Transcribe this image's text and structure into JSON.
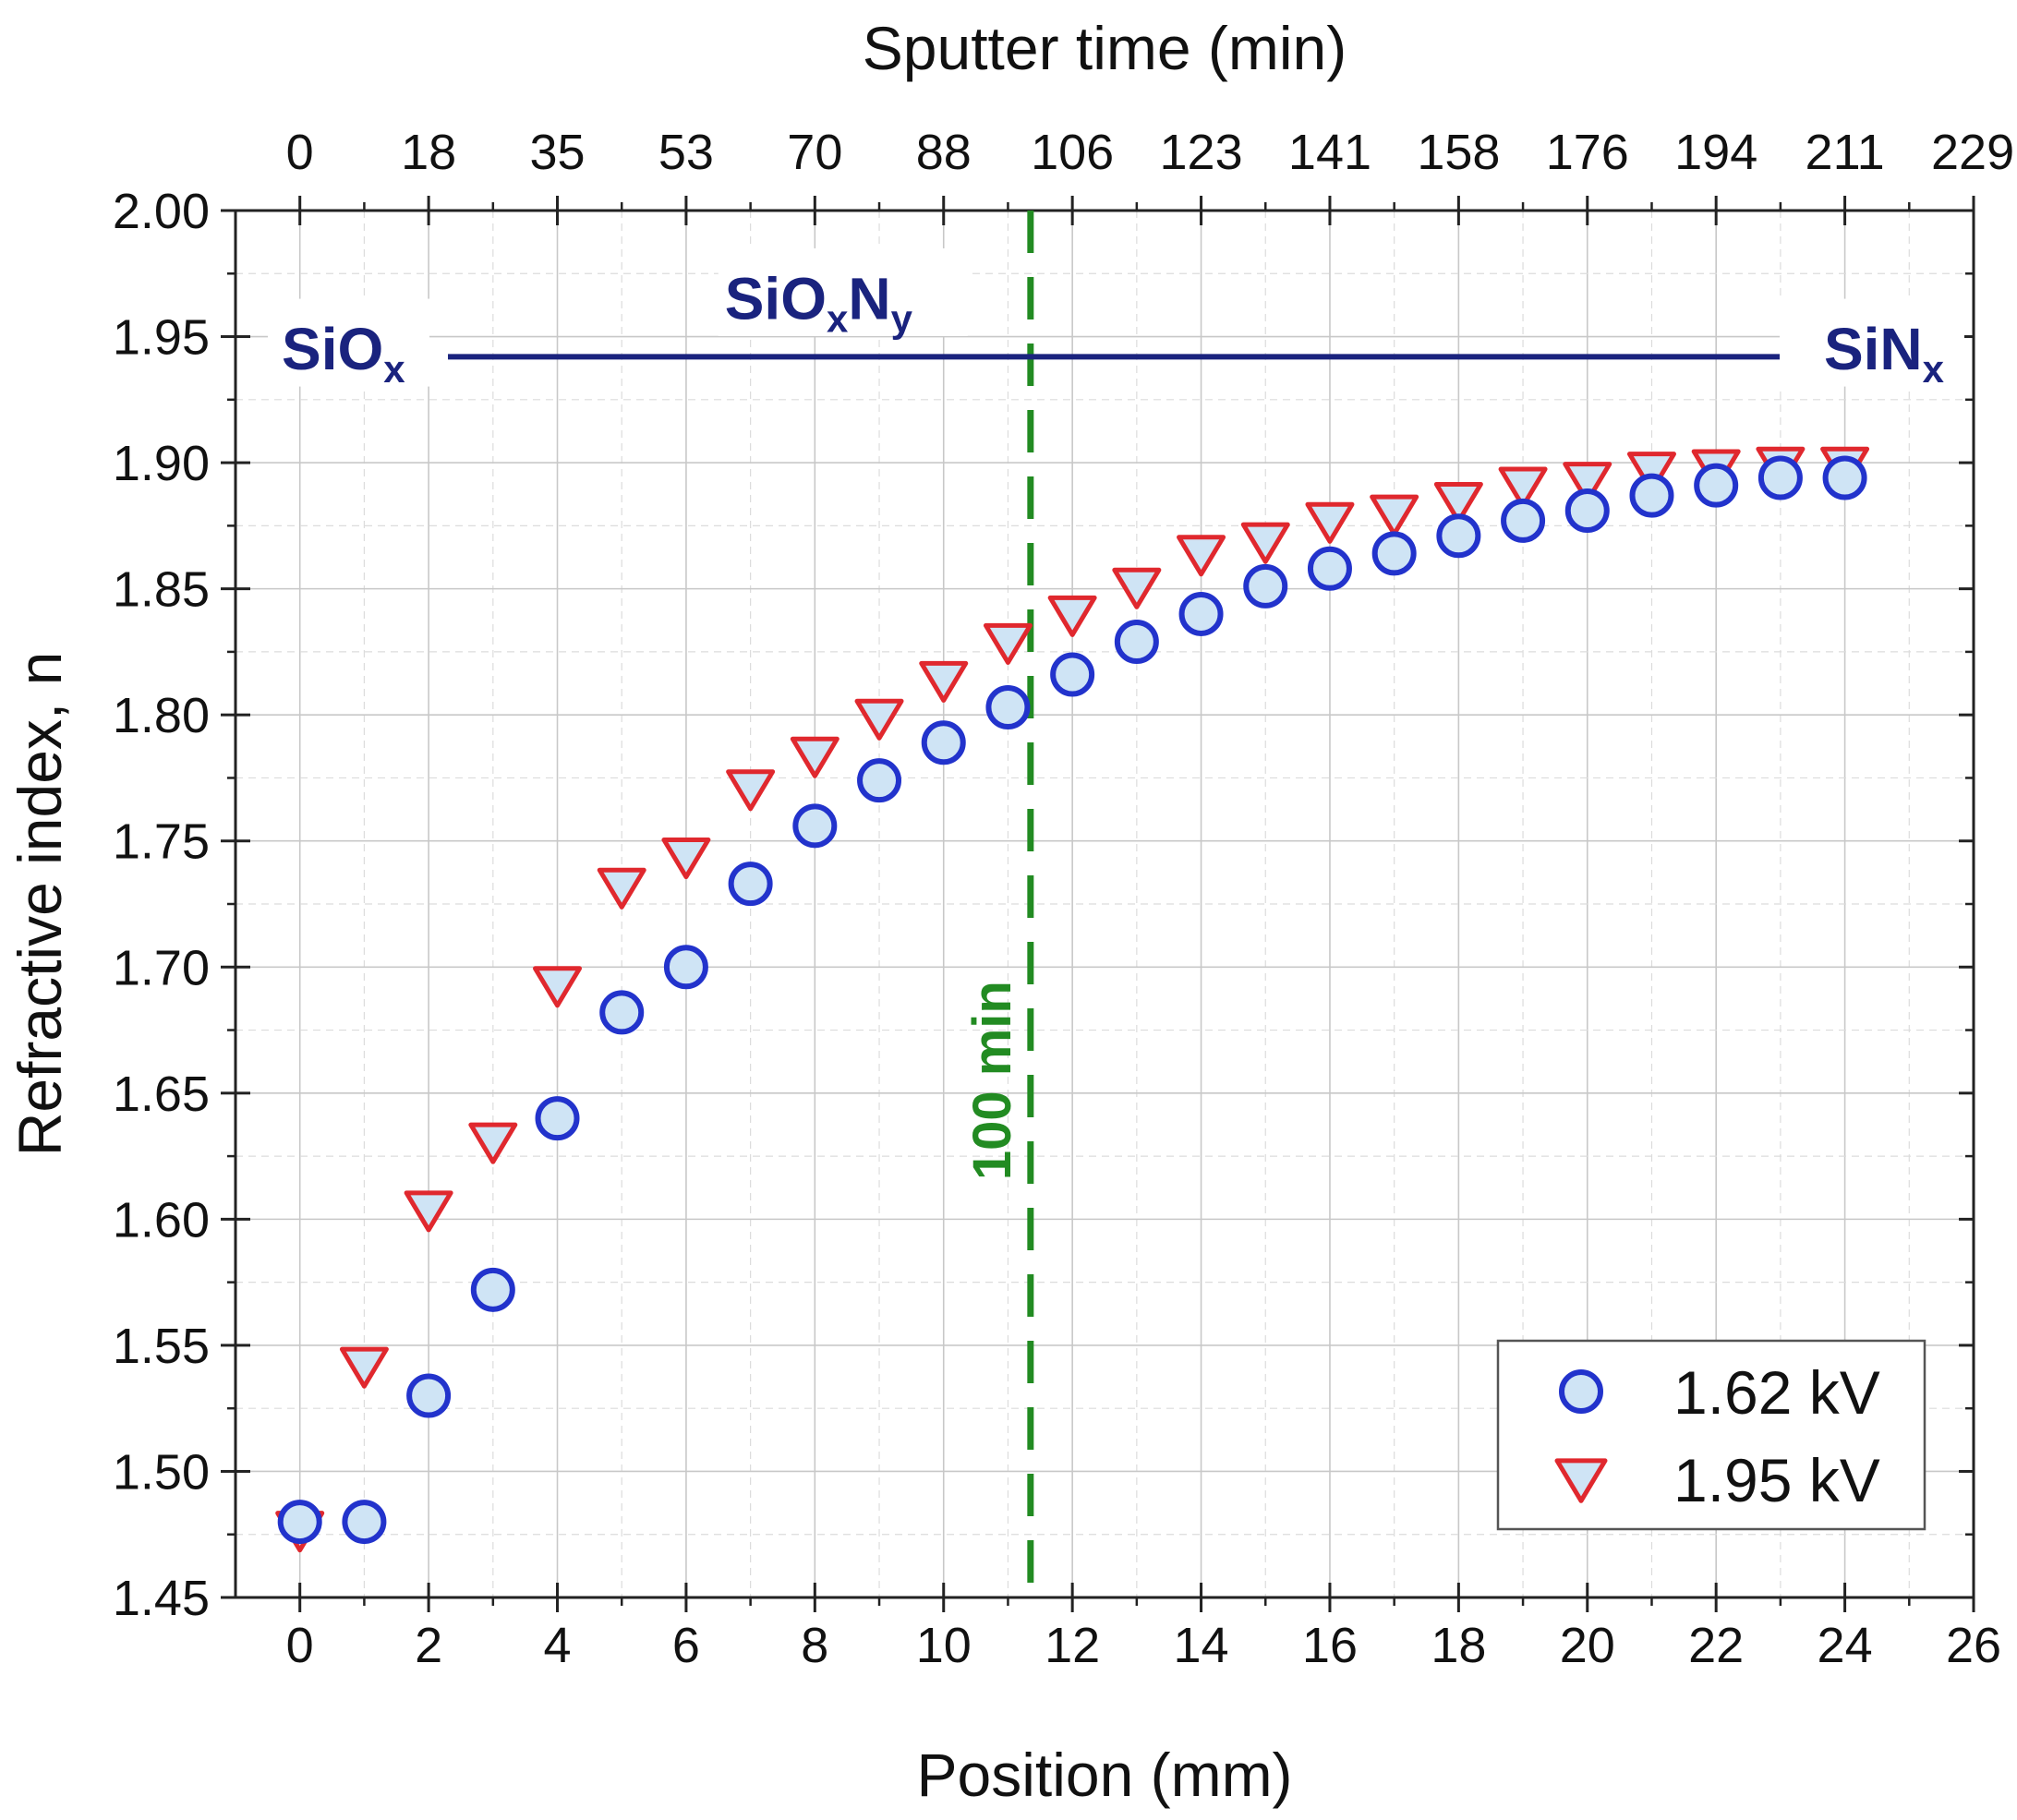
{
  "chart_data": {
    "type": "scatter",
    "title": "",
    "xlabel": "Position (mm)",
    "ylabel": "Refractive index, n",
    "x2label": "Sputter time (min)",
    "xlim": [
      -1,
      26
    ],
    "ylim": [
      1.45,
      2.0
    ],
    "xticks": [
      0,
      2,
      4,
      6,
      8,
      10,
      12,
      14,
      16,
      18,
      20,
      22,
      24,
      26
    ],
    "yticks": [
      1.45,
      1.5,
      1.55,
      1.6,
      1.65,
      1.7,
      1.75,
      1.8,
      1.85,
      1.9,
      1.95,
      2.0
    ],
    "ytick_labels": [
      "1.45",
      "1.50",
      "1.55",
      "1.60",
      "1.65",
      "1.70",
      "1.75",
      "1.80",
      "1.85",
      "1.90",
      "1.95",
      "2.00"
    ],
    "top_axis": {
      "positions": [
        0,
        2,
        4,
        6,
        8,
        10,
        12,
        14,
        16,
        18,
        20,
        22,
        24,
        26
      ],
      "labels": [
        "0",
        "18",
        "35",
        "53",
        "70",
        "88",
        "106",
        "123",
        "141",
        "158",
        "176",
        "194",
        "211",
        "229"
      ]
    },
    "grid": true,
    "series": [
      {
        "name": "1.62 kV",
        "marker": "circle",
        "color": "#2233cc",
        "fill": "#cfe4f5",
        "x": [
          0,
          1,
          2,
          3,
          4,
          5,
          6,
          7,
          8,
          9,
          10,
          11,
          12,
          13,
          14,
          15,
          16,
          17,
          18,
          19,
          20,
          21,
          22,
          23,
          24
        ],
        "y": [
          1.48,
          1.48,
          1.53,
          1.572,
          1.64,
          1.682,
          1.7,
          1.733,
          1.756,
          1.774,
          1.789,
          1.803,
          1.816,
          1.829,
          1.84,
          1.851,
          1.858,
          1.864,
          1.871,
          1.877,
          1.881,
          1.887,
          1.891,
          1.894,
          1.894
        ]
      },
      {
        "name": "1.95 kV",
        "marker": "triangle-down",
        "color": "#e0282e",
        "fill": "#cfe4f5",
        "x": [
          0,
          1,
          2,
          3,
          4,
          5,
          6,
          7,
          8,
          9,
          10,
          11,
          12,
          13,
          14,
          15,
          16,
          17,
          18,
          19,
          20,
          21,
          22,
          23,
          24
        ],
        "y": [
          1.478,
          1.543,
          1.605,
          1.632,
          1.694,
          1.733,
          1.745,
          1.772,
          1.785,
          1.8,
          1.815,
          1.83,
          1.841,
          1.852,
          1.865,
          1.87,
          1.878,
          1.881,
          1.886,
          1.892,
          1.894,
          1.898,
          1.899,
          1.9,
          1.9
        ]
      }
    ],
    "annotations": {
      "vline": {
        "x": 11.35,
        "label": "100 min",
        "color": "#228b22"
      },
      "arrow": {
        "x_start": 2.3,
        "x_end": 25.0,
        "y": 1.942,
        "color": "#1a237e"
      },
      "left_label": {
        "main": "SiO",
        "sub": "x"
      },
      "middle_label": {
        "main1": "SiO",
        "sub1": "x",
        "main2": "N",
        "sub2": "y"
      },
      "right_label": {
        "main": "SiN",
        "sub": "x"
      }
    },
    "legend": {
      "position": "bottom-right"
    }
  }
}
